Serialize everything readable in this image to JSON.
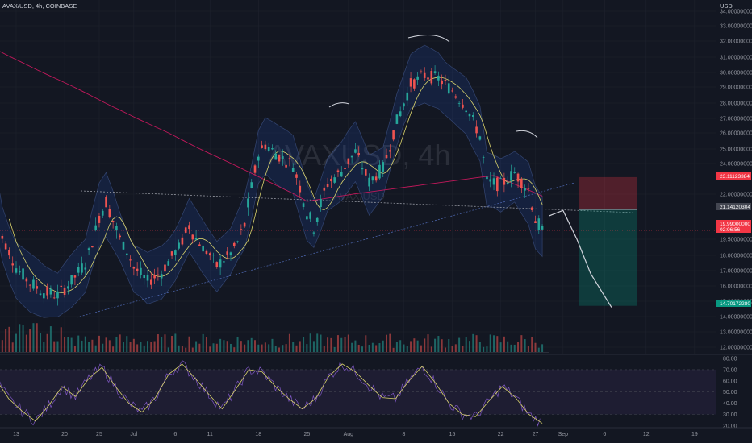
{
  "header": {
    "title": "AVAX/USD, 4h, COINBASE",
    "currency": "USD",
    "watermark_main": "AVAXUSD, 4h",
    "watermark_sub": "AVAX/USD"
  },
  "chart_data": [
    {
      "type": "candlestick",
      "title": "AVAX/USD, 4h, COINBASE",
      "ylabel": "USD",
      "ylim": [
        12,
        34
      ],
      "grid": true,
      "y_ticks": [
        "34.00000000",
        "33.00000000",
        "32.00000000",
        "31.00000000",
        "30.00000000",
        "29.00000000",
        "28.00000000",
        "27.00000000",
        "26.00000000",
        "25.00000000",
        "24.00000000",
        "22.00000000",
        "19.50000000",
        "18.00000000",
        "17.00000000",
        "16.00000000",
        "15.00000000",
        "14.00000000",
        "13.00000000",
        "12.00000000"
      ],
      "x_ticks": [
        "13",
        "20",
        "25",
        "Jul",
        "6",
        "11",
        "18",
        "25",
        "Aug",
        "8",
        "15",
        "22",
        "27",
        "Sep",
        "6",
        "12",
        "19"
      ],
      "price_series_points": [
        [
          "Jun 10",
          22.2
        ],
        [
          "Jun 11",
          19.6
        ],
        [
          "Jun 12",
          18.3
        ],
        [
          "Jun 13",
          17.2
        ],
        [
          "Jun 15",
          16.2
        ],
        [
          "Jun 17",
          15.6
        ],
        [
          "Jun 19",
          15.4
        ],
        [
          "Jun 21",
          16.3
        ],
        [
          "Jun 23",
          17.5
        ],
        [
          "Jun 25",
          20.8
        ],
        [
          "Jun 26",
          21.6
        ],
        [
          "Jun 28",
          19.5
        ],
        [
          "Jun 30",
          17.2
        ],
        [
          "Jul 2",
          16.3
        ],
        [
          "Jul 4",
          16.9
        ],
        [
          "Jul 6",
          18.3
        ],
        [
          "Jul 8",
          20.3
        ],
        [
          "Jul 10",
          18.7
        ],
        [
          "Jul 12",
          17.3
        ],
        [
          "Jul 14",
          18.2
        ],
        [
          "Jul 16",
          20.3
        ],
        [
          "Jul 18",
          24.6
        ],
        [
          "Jul 19",
          25.3
        ],
        [
          "Jul 21",
          24.5
        ],
        [
          "Jul 23",
          23.9
        ],
        [
          "Jul 25",
          21.0
        ],
        [
          "Jul 26",
          20.2
        ],
        [
          "Jul 28",
          22.7
        ],
        [
          "Jul 30",
          23.5
        ],
        [
          "Aug 1",
          24.8
        ],
        [
          "Aug 3",
          22.8
        ],
        [
          "Aug 5",
          23.7
        ],
        [
          "Aug 7",
          26.8
        ],
        [
          "Aug 9",
          29.2
        ],
        [
          "Aug 11",
          29.8
        ],
        [
          "Aug 13",
          29.6
        ],
        [
          "Aug 15",
          28.8
        ],
        [
          "Aug 17",
          27.8
        ],
        [
          "Aug 19",
          25.8
        ],
        [
          "Aug 20",
          22.8
        ],
        [
          "Aug 22",
          22.6
        ],
        [
          "Aug 24",
          23.4
        ],
        [
          "Aug 26",
          22.3
        ],
        [
          "Aug 27",
          20.6
        ],
        [
          "Aug 28",
          19.9
        ]
      ],
      "levels": [
        {
          "label": "23.11123384",
          "value": 23.11,
          "color": "#f23645"
        },
        {
          "label": "21.14120304",
          "value": 21.14,
          "color": "#434651"
        },
        {
          "label": "19.99000000",
          "value": 19.99,
          "color": "#f23645"
        },
        {
          "label": "02:06:56",
          "value": 19.99,
          "color": "#f23645"
        },
        {
          "label": "14.70172280",
          "value": 14.7,
          "color": "#089981"
        }
      ],
      "position_tool": {
        "type": "short",
        "entry": 21.14,
        "stop": 23.11,
        "target": 14.7
      },
      "projection_path": [
        [
          "Aug 29",
          20.8
        ],
        [
          "Aug 31",
          21.1
        ],
        [
          "Sep 2",
          19.5
        ],
        [
          "Sep 4",
          16.8
        ],
        [
          "Sep 7",
          14.6
        ]
      ]
    },
    {
      "type": "line",
      "title": "",
      "ylim": [
        20,
        80
      ],
      "y_ticks": [
        "80.00",
        "70.00",
        "60.00",
        "50.00",
        "40.00",
        "30.00",
        "20.00"
      ],
      "series": [
        {
          "name": "",
          "values": [
            62,
            44,
            33,
            24,
            38,
            55,
            46,
            62,
            72,
            55,
            40,
            32,
            45,
            66,
            75,
            62,
            48,
            35,
            52,
            70,
            68,
            55,
            44,
            35,
            44,
            64,
            75,
            68,
            56,
            45,
            44,
            60,
            73,
            58,
            40,
            30,
            28,
            42,
            55,
            45,
            30,
            22
          ]
        }
      ]
    }
  ],
  "colors": {
    "background": "#131722",
    "grid": "#1e222d",
    "bull": "#26a69a",
    "bear": "#ef5350",
    "ma_yellow": "#d9d36c",
    "ma_red": "#c2185b",
    "bands": "#3a4f7a",
    "rsi": "#7e57c2",
    "rsi_ma": "#d9d36c"
  }
}
